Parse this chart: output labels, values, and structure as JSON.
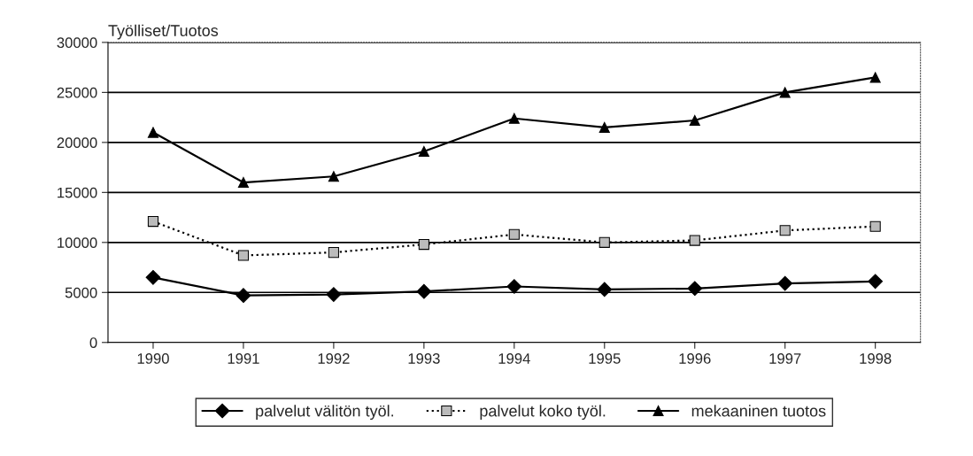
{
  "chart_data": {
    "type": "line",
    "ylabel": "Työlliset/Tuotos",
    "categories": [
      "1990",
      "1991",
      "1992",
      "1993",
      "1994",
      "1995",
      "1996",
      "1997",
      "1998"
    ],
    "series": [
      {
        "name": "palvelut välitön työl.",
        "color": "#000000",
        "marker": "diamond",
        "line_style": "solid",
        "values": [
          6500,
          4700,
          4800,
          5100,
          5600,
          5300,
          5400,
          5900,
          6100
        ]
      },
      {
        "name": "palvelut koko työl.",
        "color": "#000000",
        "marker": "square",
        "line_style": "dotted",
        "values": [
          12100,
          8700,
          9000,
          9800,
          10800,
          10000,
          10200,
          11200,
          11600
        ]
      },
      {
        "name": "mekaaninen tuotos",
        "color": "#000000",
        "marker": "triangle",
        "line_style": "solid",
        "values": [
          21000,
          16000,
          16600,
          19100,
          22400,
          21500,
          22200,
          25000,
          26500
        ]
      }
    ],
    "ylim": [
      0,
      30000
    ],
    "yticks": [
      0,
      5000,
      10000,
      15000,
      20000,
      25000,
      30000
    ],
    "grid": "y",
    "legend": "bottom"
  }
}
